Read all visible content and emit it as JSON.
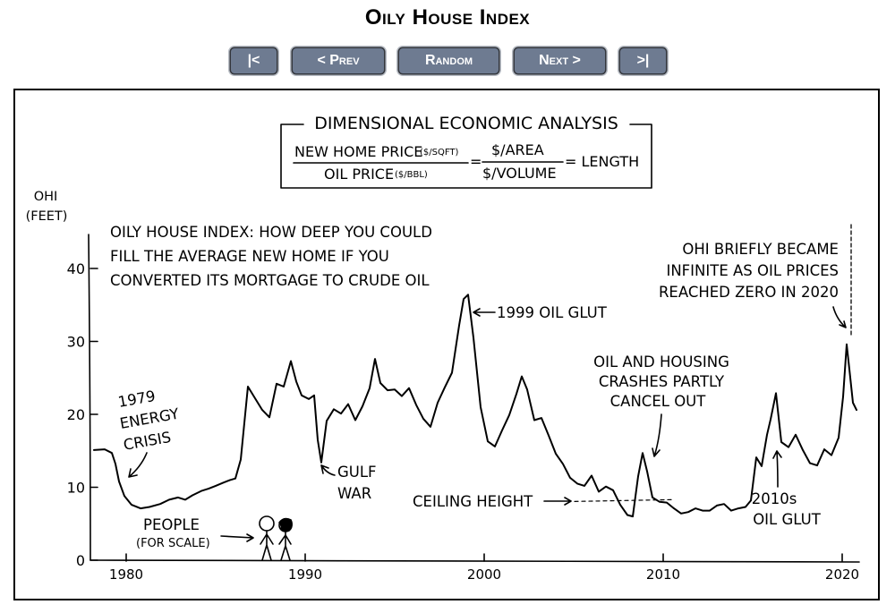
{
  "page": {
    "title": "Oily House Index"
  },
  "nav": {
    "first": "|<",
    "prev": "< Prev",
    "random": "Random",
    "next": "Next >",
    "last": ">|"
  },
  "colors": {
    "button_bg": "#6e7b91",
    "button_text": "#ffffff",
    "ink": "#000000"
  },
  "comic": {
    "header": "DIMENSIONAL ECONOMIC ANALYSIS",
    "formula": {
      "numerator": "NEW HOME PRICE",
      "numerator_unit": "($/SQFT)",
      "denominator": "OIL PRICE",
      "denominator_unit": "($/BBL)",
      "equals": "=",
      "ratio_top": "$/AREA",
      "ratio_bottom": "$/VOLUME",
      "result": "= LENGTH"
    },
    "description": [
      "OILY HOUSE INDEX: HOW DEEP YOU COULD",
      "FILL THE AVERAGE NEW HOME IF YOU",
      "CONVERTED ITS MORTGAGE TO CRUDE OIL"
    ],
    "annotations": {
      "energy_crisis": [
        "1979",
        "ENERGY",
        "CRISIS"
      ],
      "gulf_war": [
        "GULF",
        "WAR"
      ],
      "oil_glut_1999": "1999 OIL GLUT",
      "crashes": [
        "OIL AND HOUSING",
        "CRASHES PARTLY",
        "CANCEL OUT"
      ],
      "ceiling": "CEILING HEIGHT",
      "infinite": [
        "OHI BRIEFLY BECAME",
        "INFINITE AS OIL PRICES",
        "REACHED ZERO IN 2020"
      ],
      "glut_2010s": [
        "2010s",
        "OIL GLUT"
      ],
      "people": [
        "PEOPLE",
        "(FOR SCALE)"
      ]
    }
  },
  "chart_data": {
    "type": "line",
    "ylabel": [
      "OHI",
      "(FEET)"
    ],
    "x_ticks": [
      1980,
      1990,
      2000,
      2010,
      2020
    ],
    "y_ticks": [
      0,
      10,
      20,
      30,
      40
    ],
    "xlim": [
      1978,
      2021
    ],
    "ylim": [
      0,
      45
    ],
    "grid": false,
    "ceiling_height": 8.3,
    "series": [
      {
        "x": [
          1978.2,
          1978.8,
          1979.2,
          1979.4,
          1979.6,
          1979.9,
          1980.3,
          1980.8,
          1981.3,
          1981.9,
          1982.4,
          1982.9,
          1983.3,
          1983.7,
          1984.2,
          1984.6,
          1985.0,
          1985.4,
          1985.8,
          1986.1,
          1986.4,
          1986.8,
          1987.2,
          1987.6,
          1988.0,
          1988.4,
          1988.8,
          1989.2,
          1989.5,
          1989.8,
          1990.2,
          1990.5,
          1990.7,
          1990.9,
          1991.2,
          1991.6,
          1992.0,
          1992.4,
          1992.8,
          1993.2,
          1993.6,
          1993.9,
          1994.2,
          1994.6,
          1995.0,
          1995.4,
          1995.8,
          1996.2,
          1996.6,
          1997.0,
          1997.4,
          1997.8,
          1998.2,
          1998.6,
          1998.85,
          1999.1,
          1999.4,
          1999.8,
          2000.2,
          2000.6,
          2001.0,
          2001.4,
          2001.8,
          2002.1,
          2002.4,
          2002.8,
          2003.2,
          2003.6,
          2004.0,
          2004.4,
          2004.8,
          2005.2,
          2005.6,
          2006.0,
          2006.4,
          2006.8,
          2007.2,
          2007.6,
          2008.0,
          2008.3,
          2008.6,
          2008.85,
          2009.1,
          2009.4,
          2009.8,
          2010.2,
          2010.6,
          2011.0,
          2011.4,
          2011.8,
          2012.2,
          2012.6,
          2013.0,
          2013.4,
          2013.8,
          2014.2,
          2014.6,
          2014.9,
          2015.2,
          2015.5,
          2015.8,
          2016.0,
          2016.3,
          2016.6,
          2017.0,
          2017.4,
          2017.8,
          2018.2,
          2018.6,
          2019.0,
          2019.4,
          2019.8,
          2020.05,
          2020.25,
          2020.4,
          2020.6,
          2020.8
        ],
        "y": [
          15.1,
          15.2,
          14.7,
          13.2,
          10.8,
          8.8,
          7.6,
          7.1,
          7.3,
          7.7,
          8.3,
          8.6,
          8.3,
          8.9,
          9.5,
          9.8,
          10.2,
          10.6,
          11.0,
          11.2,
          13.8,
          23.8,
          22.2,
          20.6,
          19.6,
          24.2,
          23.8,
          27.3,
          24.5,
          22.6,
          22.1,
          22.6,
          16.5,
          13.4,
          19.1,
          20.7,
          20.1,
          21.4,
          19.2,
          21.1,
          23.6,
          27.6,
          24.3,
          23.3,
          23.4,
          22.5,
          23.6,
          21.3,
          19.4,
          18.3,
          21.6,
          23.7,
          25.7,
          32.2,
          35.8,
          36.4,
          30.5,
          21.0,
          16.3,
          15.6,
          17.8,
          19.9,
          22.8,
          25.2,
          23.4,
          19.2,
          19.5,
          17.1,
          14.6,
          13.2,
          11.3,
          10.5,
          10.2,
          11.6,
          9.4,
          10.1,
          9.6,
          7.6,
          6.2,
          6.0,
          11.5,
          14.7,
          12.2,
          8.6,
          8.0,
          7.9,
          7.1,
          6.4,
          6.6,
          7.1,
          6.8,
          6.8,
          7.5,
          7.7,
          6.8,
          7.1,
          7.3,
          8.2,
          14.1,
          12.9,
          17.2,
          19.3,
          22.9,
          16.2,
          15.5,
          17.2,
          15.1,
          13.3,
          13.0,
          15.2,
          14.4,
          16.8,
          22.4,
          29.6,
          26.2,
          21.6,
          20.6
        ]
      }
    ]
  }
}
